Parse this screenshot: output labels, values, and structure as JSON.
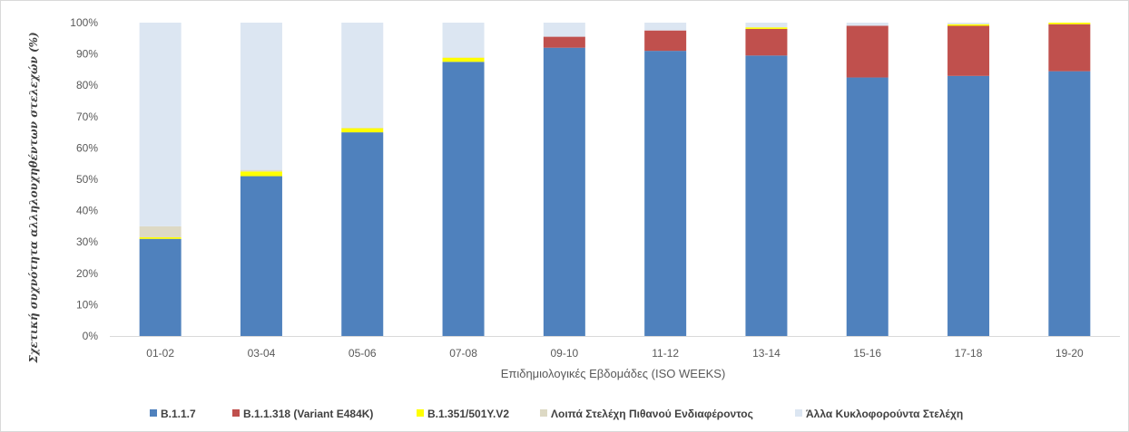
{
  "chart_data": {
    "type": "bar",
    "stacked": true,
    "title": "",
    "xlabel": "Επιδημιολογικές Εβδομάδες (ISO WEEKS)",
    "ylabel": "Σχετική συχνότητα αλληλουχηθέντων στελεχών (%)",
    "ylim": [
      0,
      100
    ],
    "yticks": [
      "0%",
      "10%",
      "20%",
      "30%",
      "40%",
      "50%",
      "60%",
      "70%",
      "80%",
      "90%",
      "100%"
    ],
    "grid": false,
    "legend_position": "bottom",
    "categories": [
      "01-02",
      "03-04",
      "05-06",
      "07-08",
      "09-10",
      "11-12",
      "13-14",
      "15-16",
      "17-18",
      "19-20"
    ],
    "series": [
      {
        "name": "B.1.1.7",
        "color": "#4f81bd",
        "values": [
          31,
          51,
          65,
          87.5,
          92,
          91,
          89.5,
          82.5,
          83,
          84.5
        ]
      },
      {
        "name": "B.1.1.318 (Variant E484K)",
        "color": "#c0504d",
        "values": [
          0,
          0,
          0,
          0,
          3.5,
          6.5,
          8.5,
          16.5,
          16,
          15
        ]
      },
      {
        "name": "B.1.351/501Y.V2",
        "color": "#ffff00",
        "values": [
          0.5,
          1.5,
          1.3,
          1.3,
          0,
          0,
          0.5,
          0,
          0.5,
          0.5
        ]
      },
      {
        "name": "Λοιπά Στελέχη Πιθανού Ενδιαφέροντος",
        "color": "#ddd9c4",
        "values": [
          3.5,
          0.5,
          0.2,
          0.2,
          0,
          0,
          0,
          0,
          0,
          0
        ]
      },
      {
        "name": "Άλλα Κυκλοφορούντα Στελέχη",
        "color": "#dce6f2",
        "values": [
          65,
          47,
          33.5,
          11,
          4.5,
          2.5,
          1.5,
          1,
          0.5,
          0
        ]
      }
    ]
  }
}
